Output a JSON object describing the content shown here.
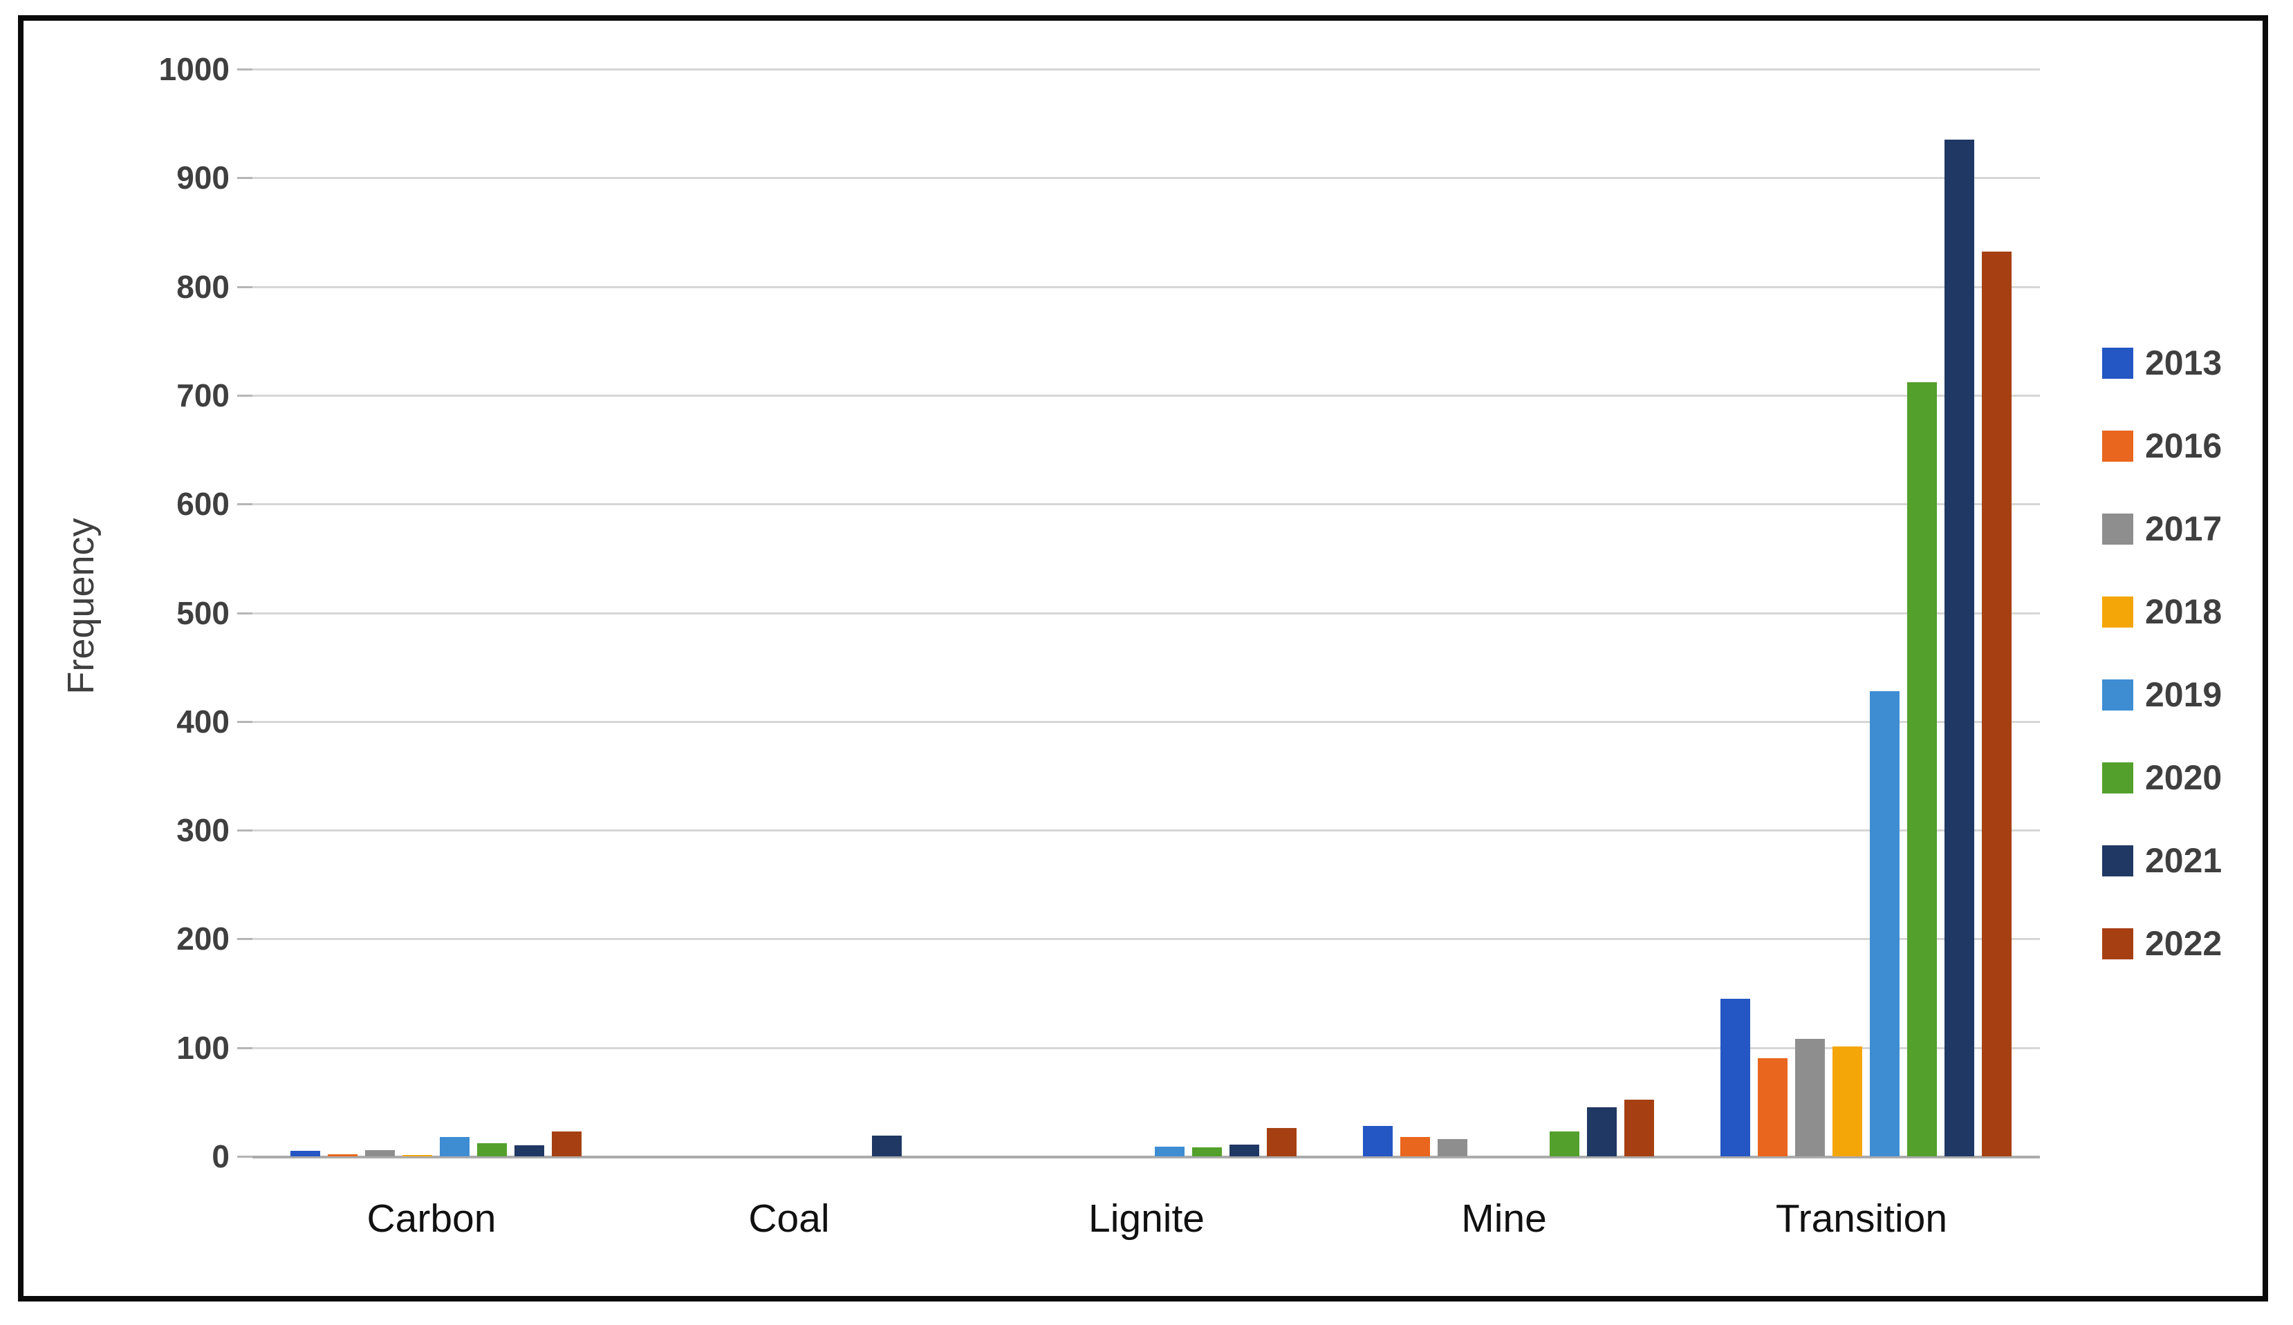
{
  "figure": {
    "description": "Grouped bar chart of keyword frequency by year",
    "background": "#ffffff",
    "frame_color": "#0a0a0a"
  },
  "chart_data": {
    "type": "bar",
    "title": "",
    "xlabel": "",
    "ylabel": "Frequency",
    "ylim": [
      0,
      1000
    ],
    "y_tick_step": 100,
    "y_ticks": [
      "0",
      "100",
      "200",
      "300",
      "400",
      "500",
      "600",
      "700",
      "800",
      "900",
      "1000"
    ],
    "grid": true,
    "legend_position": "right",
    "categories": [
      "Carbon",
      "Coal",
      "Lignite",
      "Mine",
      "Transition"
    ],
    "series": [
      {
        "name": "2013",
        "color": "#2456c4",
        "values": [
          5,
          0,
          0,
          28,
          145
        ]
      },
      {
        "name": "2016",
        "color": "#e8661d",
        "values": [
          2,
          0,
          0,
          18,
          90
        ]
      },
      {
        "name": "2017",
        "color": "#8e8e8e",
        "values": [
          6,
          0,
          0,
          16,
          108
        ]
      },
      {
        "name": "2018",
        "color": "#f4a609",
        "values": [
          1,
          0,
          0,
          0,
          101
        ]
      },
      {
        "name": "2019",
        "color": "#3e8dd3",
        "values": [
          18,
          0,
          9,
          0,
          428
        ]
      },
      {
        "name": "2020",
        "color": "#53a02c",
        "values": [
          12,
          0,
          8,
          23,
          712
        ]
      },
      {
        "name": "2021",
        "color": "#1f3864",
        "values": [
          10,
          19,
          11,
          45,
          935
        ]
      },
      {
        "name": "2022",
        "color": "#a64012",
        "values": [
          23,
          0,
          26,
          52,
          832
        ]
      }
    ],
    "style": {
      "gridline": "#d6d6d6",
      "baseline": "#ababab",
      "tick_label": "#3f3f3f",
      "category_label": "#111111"
    }
  }
}
